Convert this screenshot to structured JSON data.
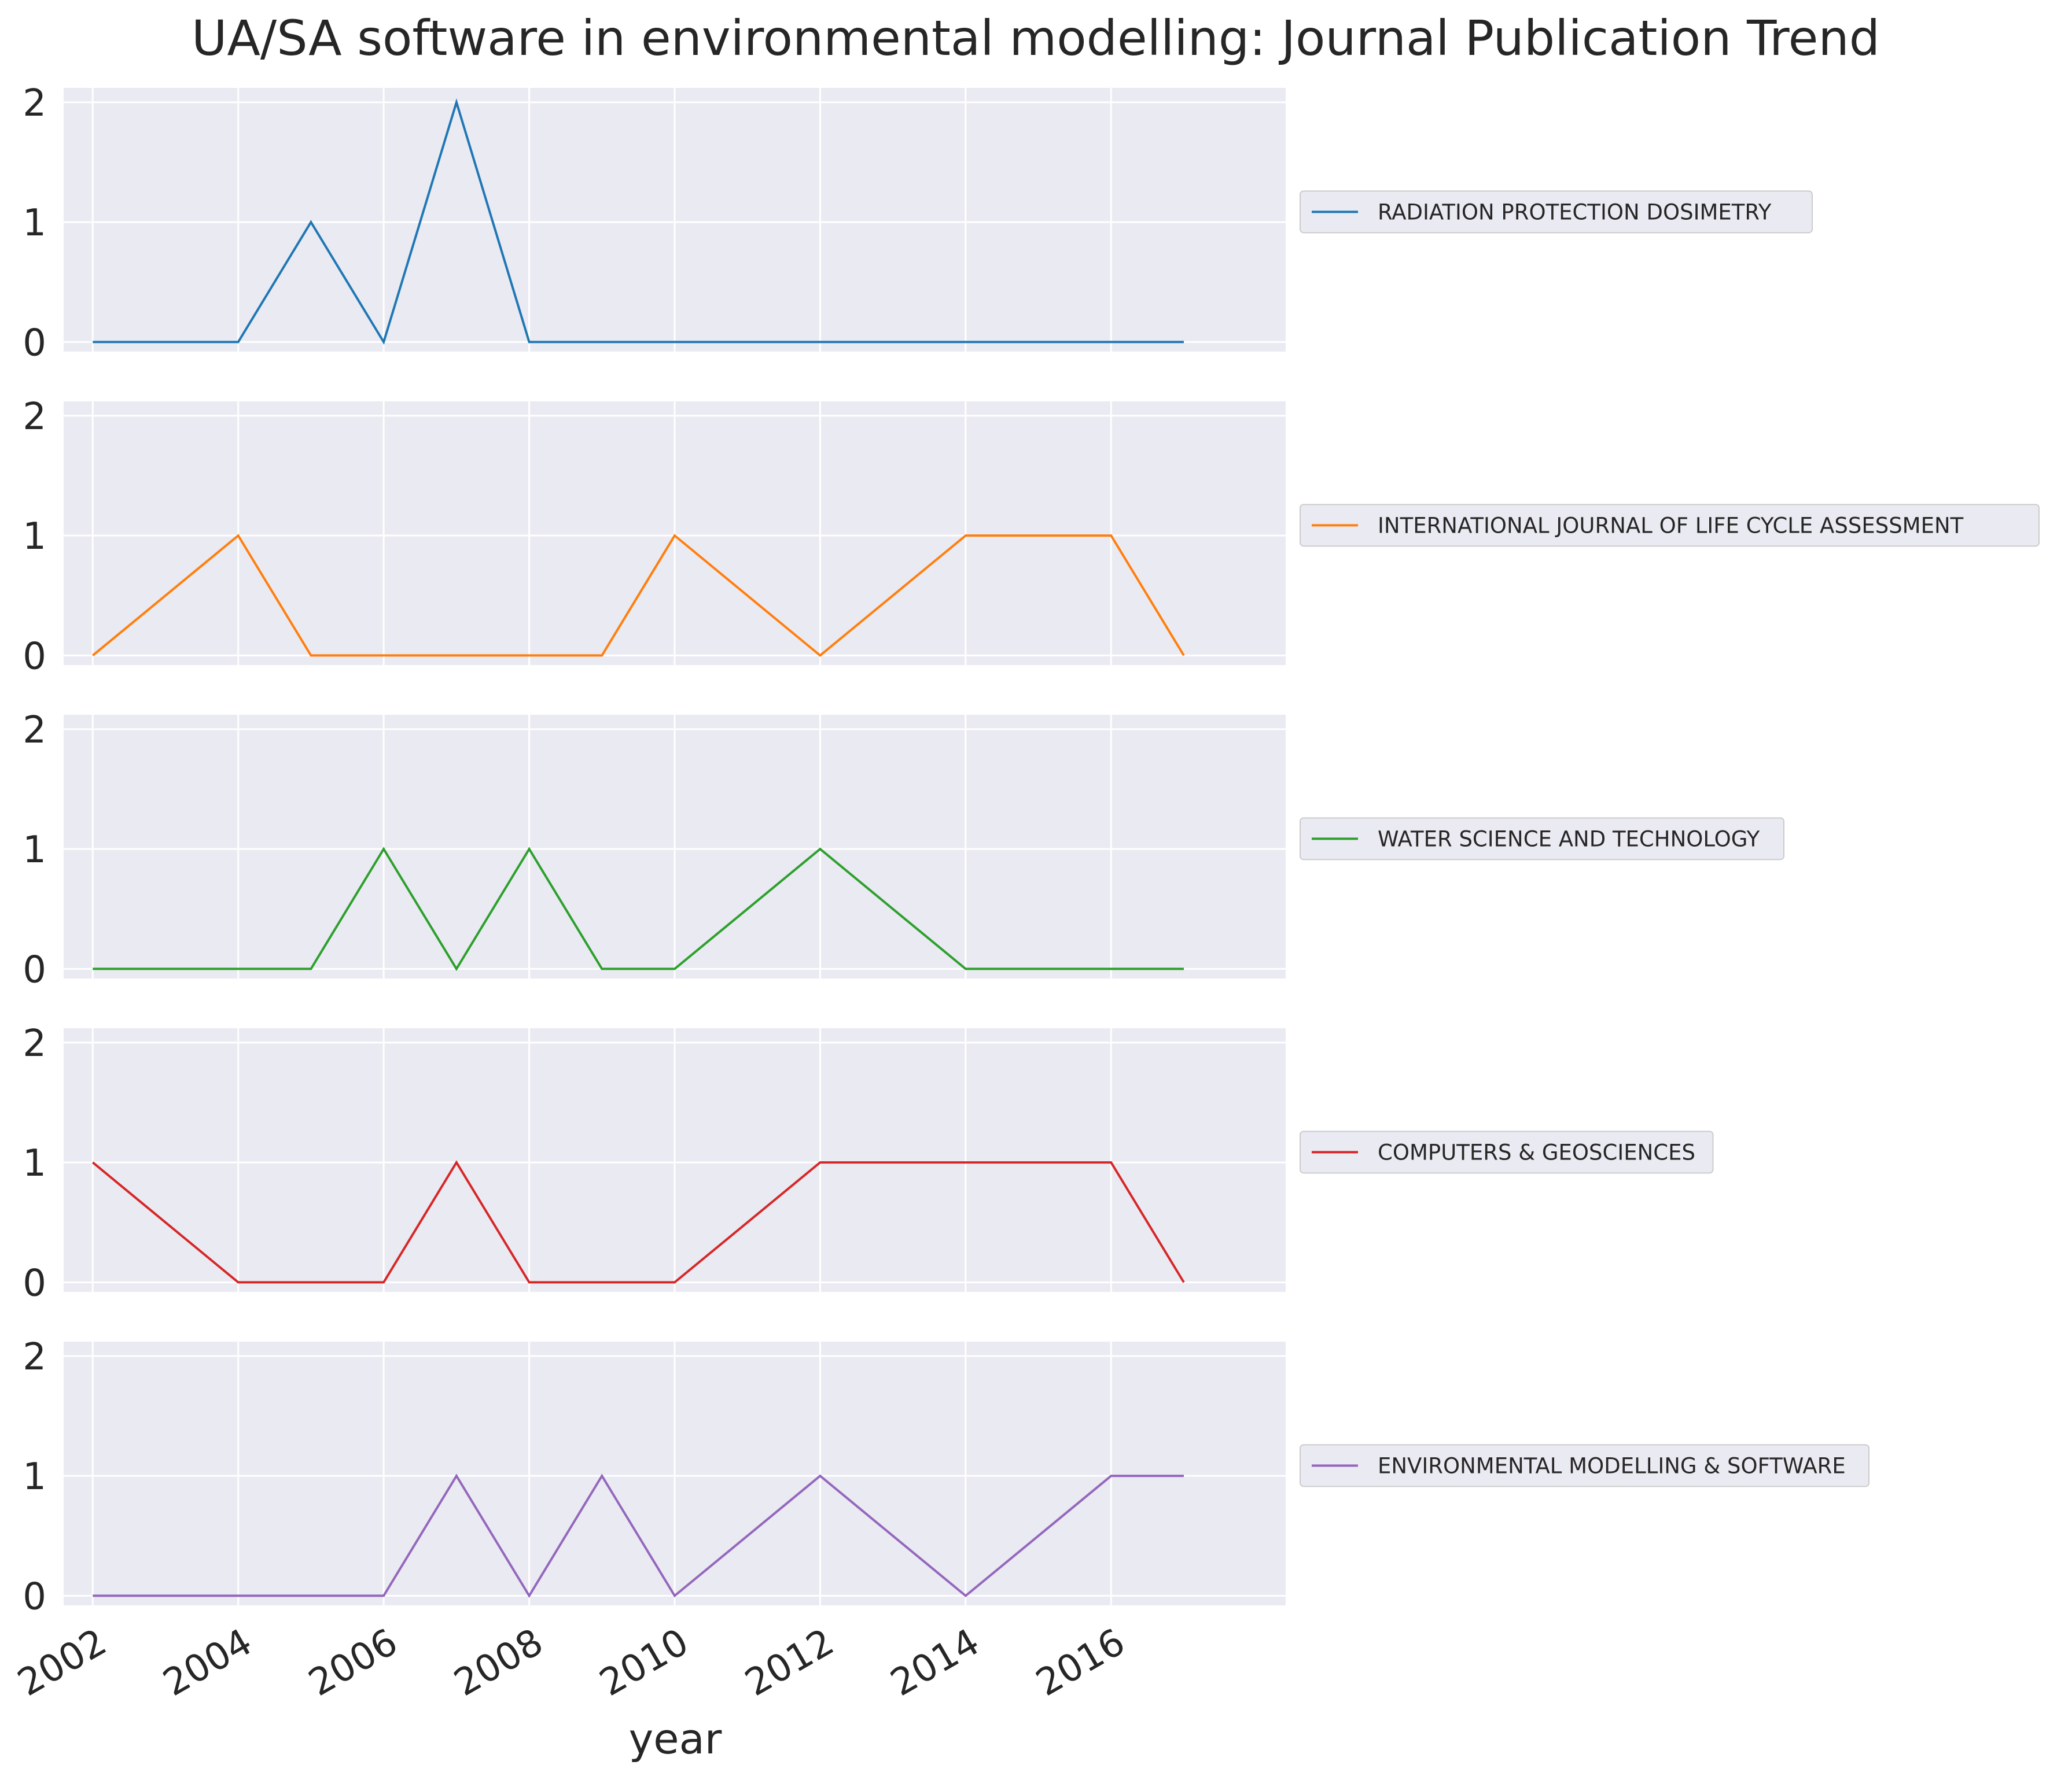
{
  "chart_data": {
    "type": "line",
    "title": "UA/SA software in environmental modelling: Journal Publication Trend",
    "xlabel": "year",
    "ylabel": "",
    "x": [
      2002,
      2003,
      2004,
      2005,
      2006,
      2007,
      2008,
      2009,
      2010,
      2011,
      2012,
      2013,
      2014,
      2015,
      2016,
      2017
    ],
    "xticks": [
      "2002",
      "2004",
      "2006",
      "2008",
      "2010",
      "2012",
      "2014",
      "2016"
    ],
    "yticks": [
      "0",
      "1",
      "2"
    ],
    "ylim": [
      0,
      2
    ],
    "grid": true,
    "legend_placement": "right of each panel",
    "series": [
      {
        "name": "RADIATION PROTECTION DOSIMETRY",
        "color": "#1f77b4",
        "values": [
          0,
          0,
          0,
          1,
          0,
          2,
          0,
          0,
          0,
          0,
          0,
          0,
          0,
          0,
          0,
          0
        ]
      },
      {
        "name": "INTERNATIONAL JOURNAL OF LIFE CYCLE ASSESSMENT",
        "color": "#ff7f0e",
        "values": [
          0,
          0.5,
          1,
          0,
          0,
          0,
          0,
          0,
          1,
          0.5,
          0,
          0.5,
          1,
          1,
          1,
          0
        ]
      },
      {
        "name": "WATER SCIENCE AND TECHNOLOGY",
        "color": "#2ca02c",
        "values": [
          0,
          0,
          0,
          0,
          1,
          0,
          1,
          0,
          0,
          0.5,
          1,
          0.5,
          0,
          0,
          0,
          0
        ]
      },
      {
        "name": "COMPUTERS & GEOSCIENCES",
        "color": "#d62728",
        "values": [
          1,
          0.5,
          0,
          0,
          0,
          1,
          0,
          0,
          0,
          0.5,
          1,
          1,
          1,
          1,
          1,
          0
        ]
      },
      {
        "name": "ENVIRONMENTAL MODELLING & SOFTWARE",
        "color": "#9467bd",
        "values": [
          0,
          0,
          0,
          0,
          0,
          1,
          0,
          1,
          0,
          0.5,
          1,
          0.5,
          0,
          0.5,
          1,
          1
        ]
      }
    ]
  }
}
